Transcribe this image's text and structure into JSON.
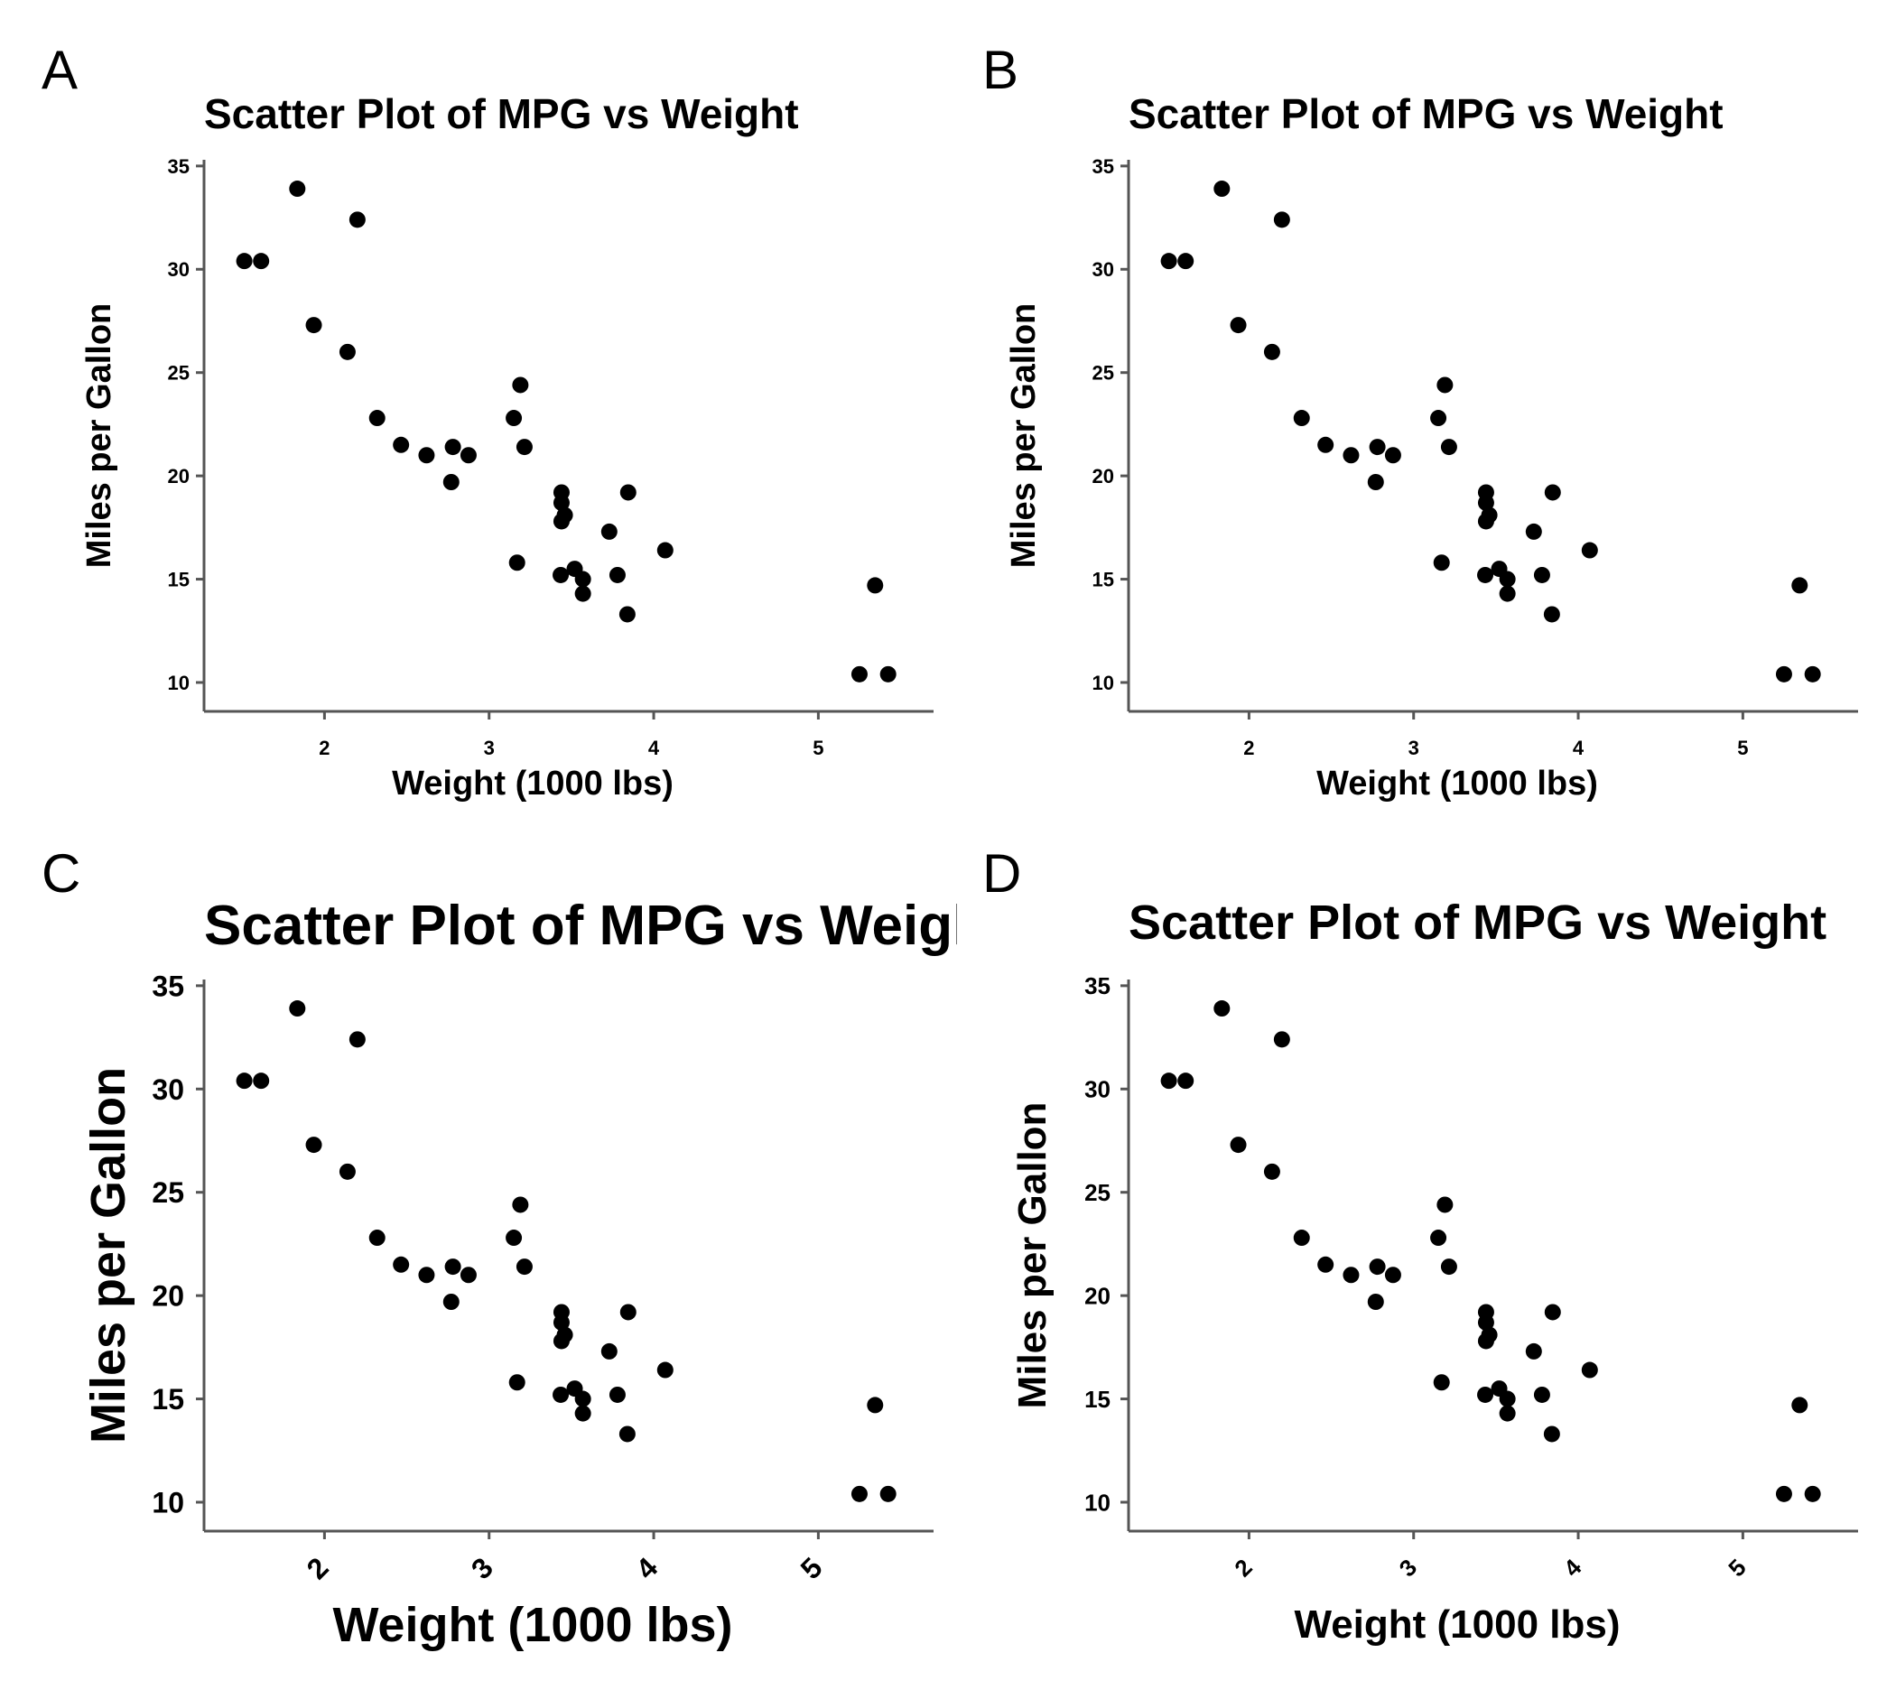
{
  "figure": {
    "panel_labels": [
      "A",
      "B",
      "C",
      "D"
    ]
  },
  "chart_data": [
    {
      "id": "A",
      "type": "scatter",
      "title": "Scatter Plot of MPG vs Weight",
      "xlabel": "Weight (1000 lbs)",
      "ylabel": "Miles per Gallon",
      "xlim": [
        1.4,
        5.7
      ],
      "ylim": [
        9.3,
        35.3
      ],
      "xticks": [
        2,
        3,
        4,
        5
      ],
      "yticks": [
        10,
        15,
        20,
        25,
        30,
        35
      ],
      "x": [
        2.62,
        2.875,
        2.32,
        3.215,
        3.44,
        3.46,
        3.57,
        3.19,
        3.15,
        3.44,
        3.44,
        4.07,
        3.73,
        3.78,
        5.25,
        5.424,
        5.345,
        2.2,
        1.615,
        1.835,
        2.465,
        3.52,
        3.435,
        3.84,
        3.845,
        1.935,
        2.14,
        1.513,
        3.17,
        2.77,
        3.57,
        2.78
      ],
      "y": [
        21.0,
        21.0,
        22.8,
        21.4,
        18.7,
        18.1,
        14.3,
        24.4,
        22.8,
        19.2,
        17.8,
        16.4,
        17.3,
        15.2,
        10.4,
        10.4,
        14.7,
        32.4,
        30.4,
        33.9,
        21.5,
        15.5,
        15.2,
        13.3,
        19.2,
        27.3,
        26.0,
        30.4,
        15.8,
        19.7,
        15.0,
        21.4
      ]
    },
    {
      "id": "B",
      "type": "scatter",
      "title": "Scatter Plot of MPG vs Weight",
      "xlabel": "Weight (1000 lbs)",
      "ylabel": "Miles per Gallon",
      "xlim": [
        1.4,
        5.7
      ],
      "ylim": [
        9.3,
        35.3
      ],
      "xticks": [
        2,
        3,
        4,
        5
      ],
      "yticks": [
        10,
        15,
        20,
        25,
        30,
        35
      ],
      "x": [
        2.62,
        2.875,
        2.32,
        3.215,
        3.44,
        3.46,
        3.57,
        3.19,
        3.15,
        3.44,
        3.44,
        4.07,
        3.73,
        3.78,
        5.25,
        5.424,
        5.345,
        2.2,
        1.615,
        1.835,
        2.465,
        3.52,
        3.435,
        3.84,
        3.845,
        1.935,
        2.14,
        1.513,
        3.17,
        2.77,
        3.57,
        2.78
      ],
      "y": [
        21.0,
        21.0,
        22.8,
        21.4,
        18.7,
        18.1,
        14.3,
        24.4,
        22.8,
        19.2,
        17.8,
        16.4,
        17.3,
        15.2,
        10.4,
        10.4,
        14.7,
        32.4,
        30.4,
        33.9,
        21.5,
        15.5,
        15.2,
        13.3,
        19.2,
        27.3,
        26.0,
        30.4,
        15.8,
        19.7,
        15.0,
        21.4
      ]
    },
    {
      "id": "C",
      "type": "scatter",
      "title": "Scatter Plot of MPG vs Weight",
      "xlabel": "Weight (1000 lbs)",
      "ylabel": "Miles per Gallon",
      "xlim": [
        1.4,
        5.7
      ],
      "ylim": [
        9.3,
        35.3
      ],
      "xticks": [
        2,
        3,
        4,
        5
      ],
      "yticks": [
        10,
        15,
        20,
        25,
        30,
        35
      ],
      "x": [
        2.62,
        2.875,
        2.32,
        3.215,
        3.44,
        3.46,
        3.57,
        3.19,
        3.15,
        3.44,
        3.44,
        4.07,
        3.73,
        3.78,
        5.25,
        5.424,
        5.345,
        2.2,
        1.615,
        1.835,
        2.465,
        3.52,
        3.435,
        3.84,
        3.845,
        1.935,
        2.14,
        1.513,
        3.17,
        2.77,
        3.57,
        2.78
      ],
      "y": [
        21.0,
        21.0,
        22.8,
        21.4,
        18.7,
        18.1,
        14.3,
        24.4,
        22.8,
        19.2,
        17.8,
        16.4,
        17.3,
        15.2,
        10.4,
        10.4,
        14.7,
        32.4,
        30.4,
        33.9,
        21.5,
        15.5,
        15.2,
        13.3,
        19.2,
        27.3,
        26.0,
        30.4,
        15.8,
        19.7,
        15.0,
        21.4
      ]
    },
    {
      "id": "D",
      "type": "scatter",
      "title": "Scatter Plot of MPG vs Weight",
      "xlabel": "Weight (1000 lbs)",
      "ylabel": "Miles per Gallon",
      "xlim": [
        1.4,
        5.7
      ],
      "ylim": [
        9.3,
        35.3
      ],
      "xticks": [
        2,
        3,
        4,
        5
      ],
      "yticks": [
        10,
        15,
        20,
        25,
        30,
        35
      ],
      "x": [
        2.62,
        2.875,
        2.32,
        3.215,
        3.44,
        3.46,
        3.57,
        3.19,
        3.15,
        3.44,
        3.44,
        4.07,
        3.73,
        3.78,
        5.25,
        5.424,
        5.345,
        2.2,
        1.615,
        1.835,
        2.465,
        3.52,
        3.435,
        3.84,
        3.845,
        1.935,
        2.14,
        1.513,
        3.17,
        2.77,
        3.57,
        2.78
      ],
      "y": [
        21.0,
        21.0,
        22.8,
        21.4,
        18.7,
        18.1,
        14.3,
        24.4,
        22.8,
        19.2,
        17.8,
        16.4,
        17.3,
        15.2,
        10.4,
        10.4,
        14.7,
        32.4,
        30.4,
        33.9,
        21.5,
        15.5,
        15.2,
        13.3,
        19.2,
        27.3,
        26.0,
        30.4,
        15.8,
        19.7,
        15.0,
        21.4
      ]
    }
  ]
}
